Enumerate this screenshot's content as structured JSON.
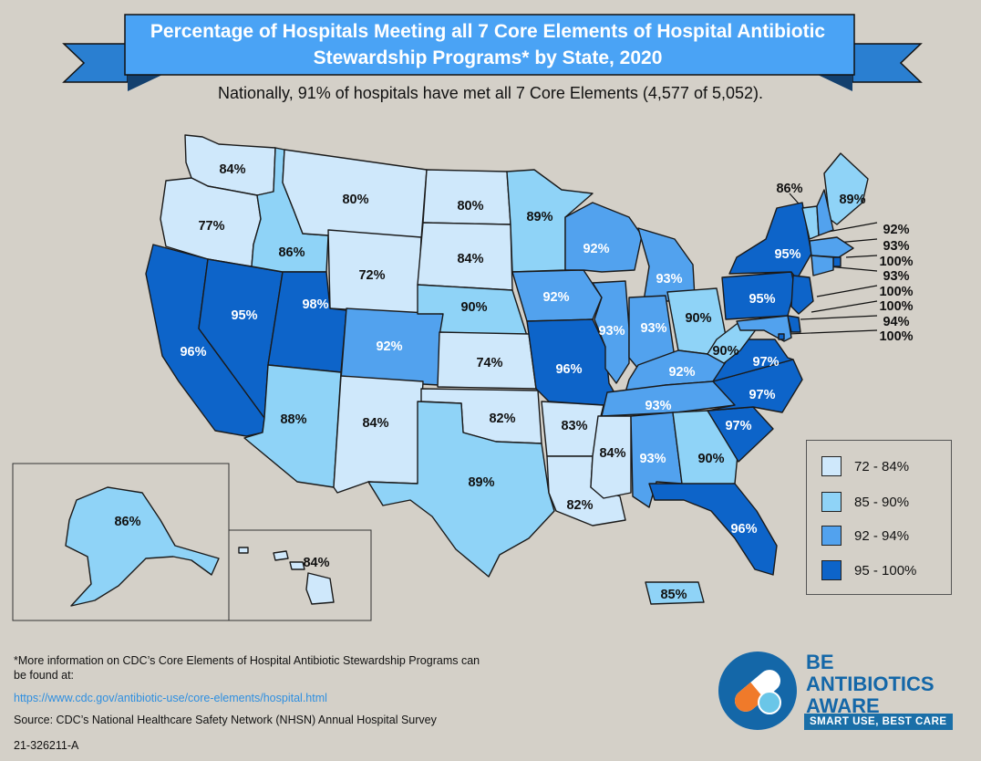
{
  "title": "Percentage of Hospitals Meeting all 7 Core Elements of Hospital Antibiotic Stewardship Programs* by State, 2020",
  "subtitle": "Nationally, 91% of hospitals have met all 7 Core Elements (4,577 of 5,052).",
  "colors": {
    "background": "#d4d0c8",
    "banner": "#4aa3f5",
    "banner_dark": "#2a7fd1",
    "tier_72_84": "#cfe8fb",
    "tier_85_90": "#8fd3f7",
    "tier_92_94": "#52a2ee",
    "tier_95_100": "#0d64c9"
  },
  "legend": [
    {
      "label": "72 - 84%",
      "tier": "tier_72_84"
    },
    {
      "label": "85 - 90%",
      "tier": "tier_85_90"
    },
    {
      "label": "92 - 94%",
      "tier": "tier_92_94"
    },
    {
      "label": "95 - 100%",
      "tier": "tier_95_100"
    }
  ],
  "states": [
    {
      "name": "WA",
      "label": "84%",
      "value": 84
    },
    {
      "name": "OR",
      "label": "77%",
      "value": 77
    },
    {
      "name": "CA",
      "label": "96%",
      "value": 96
    },
    {
      "name": "NV",
      "label": "95%",
      "value": 95
    },
    {
      "name": "ID",
      "label": "86%",
      "value": 86
    },
    {
      "name": "MT",
      "label": "80%",
      "value": 80
    },
    {
      "name": "WY",
      "label": "72%",
      "value": 72
    },
    {
      "name": "UT",
      "label": "98%",
      "value": 98
    },
    {
      "name": "AZ",
      "label": "88%",
      "value": 88
    },
    {
      "name": "CO",
      "label": "92%",
      "value": 92
    },
    {
      "name": "NM",
      "label": "84%",
      "value": 84
    },
    {
      "name": "ND",
      "label": "80%",
      "value": 80
    },
    {
      "name": "SD",
      "label": "84%",
      "value": 84
    },
    {
      "name": "NE",
      "label": "90%",
      "value": 90
    },
    {
      "name": "KS",
      "label": "74%",
      "value": 74
    },
    {
      "name": "OK",
      "label": "82%",
      "value": 82
    },
    {
      "name": "TX",
      "label": "89%",
      "value": 89
    },
    {
      "name": "MN",
      "label": "89%",
      "value": 89
    },
    {
      "name": "IA",
      "label": "92%",
      "value": 92
    },
    {
      "name": "MO",
      "label": "96%",
      "value": 96
    },
    {
      "name": "AR",
      "label": "83%",
      "value": 83
    },
    {
      "name": "LA",
      "label": "82%",
      "value": 82
    },
    {
      "name": "WI",
      "label": "92%",
      "value": 92
    },
    {
      "name": "IL",
      "label": "93%",
      "value": 93
    },
    {
      "name": "MI",
      "label": "93%",
      "value": 93
    },
    {
      "name": "IN",
      "label": "93%",
      "value": 93
    },
    {
      "name": "OH",
      "label": "90%",
      "value": 90
    },
    {
      "name": "KY",
      "label": "92%",
      "value": 92
    },
    {
      "name": "TN",
      "label": "93%",
      "value": 93
    },
    {
      "name": "MS",
      "label": "84%",
      "value": 84
    },
    {
      "name": "AL",
      "label": "93%",
      "value": 93
    },
    {
      "name": "GA",
      "label": "90%",
      "value": 90
    },
    {
      "name": "FL",
      "label": "96%",
      "value": 96
    },
    {
      "name": "SC",
      "label": "97%",
      "value": 97
    },
    {
      "name": "NC",
      "label": "97%",
      "value": 97
    },
    {
      "name": "VA",
      "label": "97%",
      "value": 97
    },
    {
      "name": "WV",
      "label": "90%",
      "value": 90
    },
    {
      "name": "PA",
      "label": "95%",
      "value": 95
    },
    {
      "name": "NY",
      "label": "95%",
      "value": 95
    },
    {
      "name": "VT",
      "label": "86%",
      "value": 86
    },
    {
      "name": "ME",
      "label": "89%",
      "value": 89
    },
    {
      "name": "NH",
      "label": "92%",
      "value": 92
    },
    {
      "name": "MA",
      "label": "93%",
      "value": 93
    },
    {
      "name": "RI",
      "label": "100%",
      "value": 100
    },
    {
      "name": "CT",
      "label": "93%",
      "value": 93
    },
    {
      "name": "NJ",
      "label": "100%",
      "value": 100
    },
    {
      "name": "DE",
      "label": "100%",
      "value": 100
    },
    {
      "name": "MD",
      "label": "94%",
      "value": 94
    },
    {
      "name": "DC",
      "label": "100%",
      "value": 100
    },
    {
      "name": "AK",
      "label": "86%",
      "value": 86
    },
    {
      "name": "HI",
      "label": "84%",
      "value": 84
    },
    {
      "name": "PR",
      "label": "85%",
      "value": 85
    }
  ],
  "footnote": "*More information on CDC’s Core Elements of Hospital Antibiotic Stewardship Programs can be found at:",
  "link": "https://www.cdc.gov/antibiotic-use/core-elements/hospital.html",
  "source": "Source: CDC’s National Healthcare Safety Network (NHSN) Annual Hospital Survey",
  "doc_id": "21-326211-A",
  "logo": {
    "line1": "BE",
    "line2": "ANTIBIOTICS",
    "line3": "AWARE",
    "tagline": "SMART USE, BEST CARE"
  }
}
